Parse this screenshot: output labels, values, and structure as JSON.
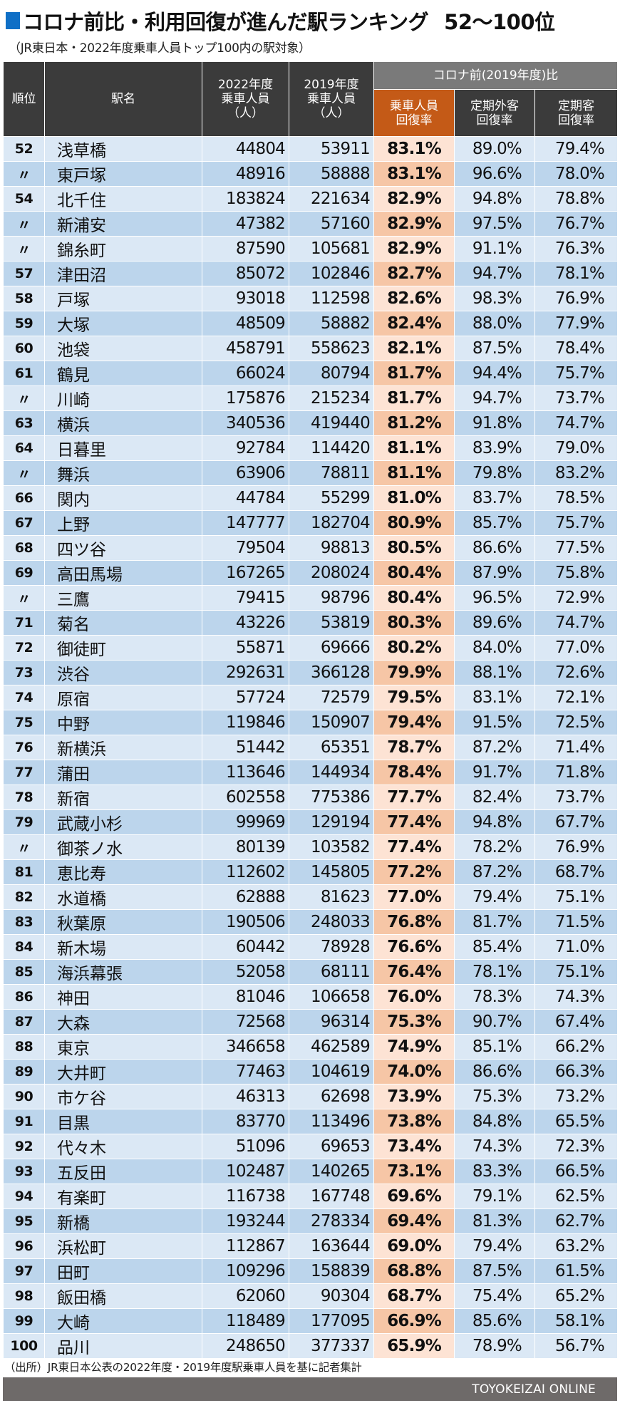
{
  "header": {
    "title": "コロナ前比・利用回復が進んだ駅ランキング",
    "title_range": "52〜100位",
    "subtitle": "（JR東日本・2022年度乗車人員トップ100内の駅対象）",
    "accent_color": "#0f6fc6"
  },
  "table": {
    "columns": {
      "rank": "順位",
      "station": "駅名",
      "riders_2022": "2022年度乗車人員（人）",
      "riders_2019": "2019年度乗車人員（人）",
      "group": "コロナ前(2019年度)比",
      "recovery_total": "乗車人員回復率",
      "recovery_non_commuter": "定期外客回復率",
      "recovery_commuter": "定期客回復率"
    },
    "header_lines": {
      "riders_2022": [
        "2022年度",
        "乗車人員",
        "（人）"
      ],
      "riders_2019": [
        "2019年度",
        "乗車人員",
        "（人）"
      ],
      "recovery_total": [
        "乗車人員",
        "回復率"
      ],
      "recovery_non_commuter": [
        "定期外客",
        "回復率"
      ],
      "recovery_commuter": [
        "定期客",
        "回復率"
      ]
    },
    "colors": {
      "header_bg": "#3b3b3b",
      "group_header_bg": "#7a7a7a",
      "highlight_header_bg": "#c45a17",
      "row_light": "#dbe8f5",
      "row_dark": "#bcd5ec",
      "highlight_light": "#fde3d4",
      "highlight_dark": "#f6c6a6"
    }
  },
  "chart_data": {
    "type": "table",
    "title": "コロナ前比・利用回復が進んだ駅ランキング 52〜100位",
    "subtitle": "（JR東日本・2022年度乗車人員トップ100内の駅対象）",
    "columns": [
      "順位",
      "駅名",
      "2022年度乗車人員（人）",
      "2019年度乗車人員（人）",
      "乗車人員回復率",
      "定期外客回復率",
      "定期客回復率"
    ],
    "rows": [
      [
        "52",
        "浅草橋",
        "44804",
        "53911",
        "83.1%",
        "89.0%",
        "79.4%"
      ],
      [
        "〃",
        "東戸塚",
        "48916",
        "58888",
        "83.1%",
        "96.6%",
        "78.0%"
      ],
      [
        "54",
        "北千住",
        "183824",
        "221634",
        "82.9%",
        "94.8%",
        "78.8%"
      ],
      [
        "〃",
        "新浦安",
        "47382",
        "57160",
        "82.9%",
        "97.5%",
        "76.7%"
      ],
      [
        "〃",
        "錦糸町",
        "87590",
        "105681",
        "82.9%",
        "91.1%",
        "76.3%"
      ],
      [
        "57",
        "津田沼",
        "85072",
        "102846",
        "82.7%",
        "94.7%",
        "78.1%"
      ],
      [
        "58",
        "戸塚",
        "93018",
        "112598",
        "82.6%",
        "98.3%",
        "76.9%"
      ],
      [
        "59",
        "大塚",
        "48509",
        "58882",
        "82.4%",
        "88.0%",
        "77.9%"
      ],
      [
        "60",
        "池袋",
        "458791",
        "558623",
        "82.1%",
        "87.5%",
        "78.4%"
      ],
      [
        "61",
        "鶴見",
        "66024",
        "80794",
        "81.7%",
        "94.4%",
        "75.7%"
      ],
      [
        "〃",
        "川崎",
        "175876",
        "215234",
        "81.7%",
        "94.7%",
        "73.7%"
      ],
      [
        "63",
        "横浜",
        "340536",
        "419440",
        "81.2%",
        "91.8%",
        "74.7%"
      ],
      [
        "64",
        "日暮里",
        "92784",
        "114420",
        "81.1%",
        "83.9%",
        "79.0%"
      ],
      [
        "〃",
        "舞浜",
        "63906",
        "78811",
        "81.1%",
        "79.8%",
        "83.2%"
      ],
      [
        "66",
        "関内",
        "44784",
        "55299",
        "81.0%",
        "83.7%",
        "78.5%"
      ],
      [
        "67",
        "上野",
        "147777",
        "182704",
        "80.9%",
        "85.7%",
        "75.7%"
      ],
      [
        "68",
        "四ツ谷",
        "79504",
        "98813",
        "80.5%",
        "86.6%",
        "77.5%"
      ],
      [
        "69",
        "高田馬場",
        "167265",
        "208024",
        "80.4%",
        "87.9%",
        "75.8%"
      ],
      [
        "〃",
        "三鷹",
        "79415",
        "98796",
        "80.4%",
        "96.5%",
        "72.9%"
      ],
      [
        "71",
        "菊名",
        "43226",
        "53819",
        "80.3%",
        "89.6%",
        "74.7%"
      ],
      [
        "72",
        "御徒町",
        "55871",
        "69666",
        "80.2%",
        "84.0%",
        "77.0%"
      ],
      [
        "73",
        "渋谷",
        "292631",
        "366128",
        "79.9%",
        "88.1%",
        "72.6%"
      ],
      [
        "74",
        "原宿",
        "57724",
        "72579",
        "79.5%",
        "83.1%",
        "72.1%"
      ],
      [
        "75",
        "中野",
        "119846",
        "150907",
        "79.4%",
        "91.5%",
        "72.5%"
      ],
      [
        "76",
        "新横浜",
        "51442",
        "65351",
        "78.7%",
        "87.2%",
        "71.4%"
      ],
      [
        "77",
        "蒲田",
        "113646",
        "144934",
        "78.4%",
        "91.7%",
        "71.8%"
      ],
      [
        "78",
        "新宿",
        "602558",
        "775386",
        "77.7%",
        "82.4%",
        "73.7%"
      ],
      [
        "79",
        "武蔵小杉",
        "99969",
        "129194",
        "77.4%",
        "94.8%",
        "67.7%"
      ],
      [
        "〃",
        "御茶ノ水",
        "80139",
        "103582",
        "77.4%",
        "78.2%",
        "76.9%"
      ],
      [
        "81",
        "恵比寿",
        "112602",
        "145805",
        "77.2%",
        "87.2%",
        "68.7%"
      ],
      [
        "82",
        "水道橋",
        "62888",
        "81623",
        "77.0%",
        "79.4%",
        "75.1%"
      ],
      [
        "83",
        "秋葉原",
        "190506",
        "248033",
        "76.8%",
        "81.7%",
        "71.5%"
      ],
      [
        "84",
        "新木場",
        "60442",
        "78928",
        "76.6%",
        "85.4%",
        "71.0%"
      ],
      [
        "85",
        "海浜幕張",
        "52058",
        "68111",
        "76.4%",
        "78.1%",
        "75.1%"
      ],
      [
        "86",
        "神田",
        "81046",
        "106658",
        "76.0%",
        "78.3%",
        "74.3%"
      ],
      [
        "87",
        "大森",
        "72568",
        "96314",
        "75.3%",
        "90.7%",
        "67.4%"
      ],
      [
        "88",
        "東京",
        "346658",
        "462589",
        "74.9%",
        "85.1%",
        "66.2%"
      ],
      [
        "89",
        "大井町",
        "77463",
        "104619",
        "74.0%",
        "86.6%",
        "66.3%"
      ],
      [
        "90",
        "市ケ谷",
        "46313",
        "62698",
        "73.9%",
        "75.3%",
        "73.2%"
      ],
      [
        "91",
        "目黒",
        "83770",
        "113496",
        "73.8%",
        "84.8%",
        "65.5%"
      ],
      [
        "92",
        "代々木",
        "51096",
        "69653",
        "73.4%",
        "74.3%",
        "72.3%"
      ],
      [
        "93",
        "五反田",
        "102487",
        "140265",
        "73.1%",
        "83.3%",
        "66.5%"
      ],
      [
        "94",
        "有楽町",
        "116738",
        "167748",
        "69.6%",
        "79.1%",
        "62.5%"
      ],
      [
        "95",
        "新橋",
        "193244",
        "278334",
        "69.4%",
        "81.3%",
        "62.7%"
      ],
      [
        "96",
        "浜松町",
        "112867",
        "163644",
        "69.0%",
        "79.4%",
        "63.2%"
      ],
      [
        "97",
        "田町",
        "109296",
        "158839",
        "68.8%",
        "87.5%",
        "61.5%"
      ],
      [
        "98",
        "飯田橋",
        "62060",
        "90304",
        "68.7%",
        "75.4%",
        "65.2%"
      ],
      [
        "99",
        "大崎",
        "118489",
        "177095",
        "66.9%",
        "85.6%",
        "58.1%"
      ],
      [
        "100",
        "品川",
        "248650",
        "377337",
        "65.9%",
        "78.9%",
        "56.7%"
      ]
    ]
  },
  "footer": {
    "source": "（出所）JR東日本公表の2022年度・2019年度駅乗車人員を基に記者集計",
    "brand": "TOYOKEIZAI ONLINE",
    "band_color": "#6e6a69"
  }
}
